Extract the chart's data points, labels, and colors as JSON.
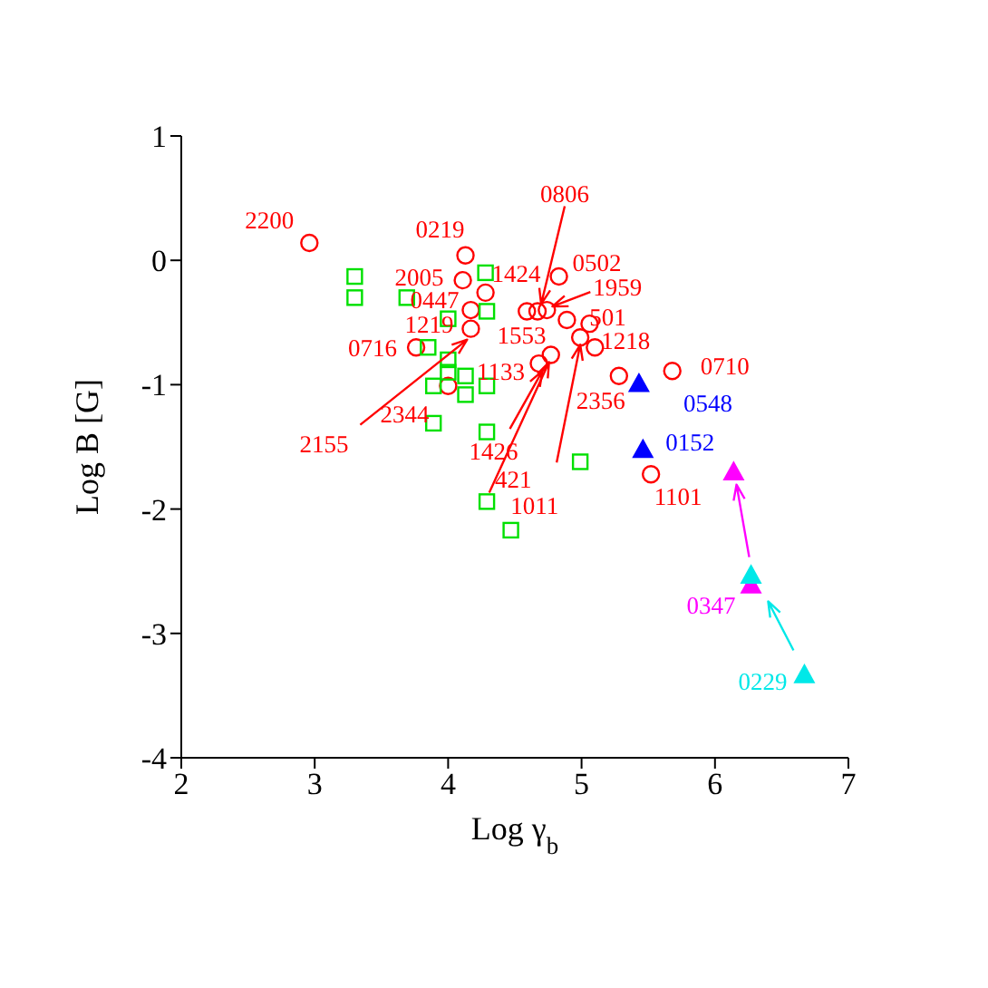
{
  "chart_data": {
    "type": "scatter",
    "xlabel": "Log γ$_{b}$",
    "ylabel": "Log B [G]",
    "xlim": [
      2,
      7
    ],
    "xticks": [
      2,
      3,
      4,
      5,
      6,
      7
    ],
    "ylim": [
      -4,
      1
    ],
    "yticks": [
      -4,
      -3,
      -2,
      -1,
      0,
      1
    ],
    "series": [
      {
        "color": "#ff0000",
        "marker": "circle",
        "x": [
          2.96,
          4.13,
          4.11,
          4.28,
          4.17,
          4.17,
          3.76,
          4.0,
          4.59,
          4.67,
          4.74,
          4.83,
          4.89,
          5.06,
          4.99,
          5.1,
          4.77,
          4.68,
          5.28,
          5.68,
          5.52
        ],
        "values": [
          0.14,
          0.04,
          -0.16,
          -0.26,
          -0.4,
          -0.55,
          -0.7,
          -1.01,
          -0.41,
          -0.41,
          -0.4,
          -0.13,
          -0.48,
          -0.51,
          -0.62,
          -0.7,
          -0.76,
          -0.83,
          -0.93,
          -0.89,
          -1.72
        ]
      },
      {
        "color": "#00e000",
        "marker": "square",
        "x": [
          3.3,
          3.3,
          3.69,
          4.28,
          4.29,
          4.0,
          3.85,
          4.0,
          4.0,
          3.89,
          4.13,
          4.29,
          4.13,
          3.89,
          4.29,
          4.29,
          4.47,
          4.99
        ],
        "values": [
          -0.13,
          -0.3,
          -0.3,
          -0.1,
          -0.41,
          -0.47,
          -0.7,
          -0.8,
          -0.9,
          -1.01,
          -0.93,
          -1.01,
          -1.08,
          -1.31,
          -1.38,
          -1.94,
          -2.17,
          -1.62
        ]
      },
      {
        "color": "#0000ff",
        "marker": "triangle",
        "x": [
          5.43,
          5.46
        ],
        "values": [
          -1.0,
          -1.53
        ]
      },
      {
        "color": "#ff00ff",
        "marker": "triangle",
        "x": [
          6.14,
          6.27
        ],
        "values": [
          -1.71,
          -2.62
        ]
      },
      {
        "color": "#00e8e8",
        "marker": "triangle",
        "x": [
          6.27,
          6.67
        ],
        "values": [
          -2.54,
          -3.34
        ]
      }
    ],
    "annotations": [
      {
        "text": "2200",
        "x": 2.96,
        "y": 0.14
      },
      {
        "text": "0219",
        "x": 4.13,
        "y": 0.04
      },
      {
        "text": "2005",
        "x": 4.11,
        "y": -0.16
      },
      {
        "text": "1424",
        "x": 4.28,
        "y": -0.26
      },
      {
        "text": "0447",
        "x": 4.17,
        "y": -0.4
      },
      {
        "text": "1219",
        "x": 4.17,
        "y": -0.55
      },
      {
        "text": "0716",
        "x": 3.76,
        "y": -0.7
      },
      {
        "text": "2155",
        "x": 4.17,
        "y": -0.55
      },
      {
        "text": "1133",
        "x": 4.68,
        "y": -0.83
      },
      {
        "text": "2344",
        "x": 4.0,
        "y": -1.01
      },
      {
        "text": "1553",
        "x": 4.89,
        "y": -0.48
      },
      {
        "text": "0806",
        "x": 4.67,
        "y": -0.41
      },
      {
        "text": "0502",
        "x": 4.83,
        "y": -0.13
      },
      {
        "text": "1959",
        "x": 4.74,
        "y": -0.4
      },
      {
        "text": "501",
        "x": 5.06,
        "y": -0.51
      },
      {
        "text": "1218",
        "x": 5.1,
        "y": -0.7
      },
      {
        "text": "2356",
        "x": 5.28,
        "y": -0.93
      },
      {
        "text": "1426",
        "x": 4.68,
        "y": -0.83
      },
      {
        "text": "1011",
        "x": 4.77,
        "y": -0.76
      },
      {
        "text": "421",
        "x": 4.99,
        "y": -0.62
      },
      {
        "text": "0710",
        "x": 5.68,
        "y": -0.89
      },
      {
        "text": "0548",
        "x": 5.43,
        "y": -1.0
      },
      {
        "text": "0152",
        "x": 5.46,
        "y": -1.53
      },
      {
        "text": "1101",
        "x": 5.52,
        "y": -1.72
      },
      {
        "text": "0347",
        "x": 6.27,
        "y": -2.62
      },
      {
        "text": "0229",
        "x": 6.67,
        "y": -3.34
      }
    ]
  }
}
